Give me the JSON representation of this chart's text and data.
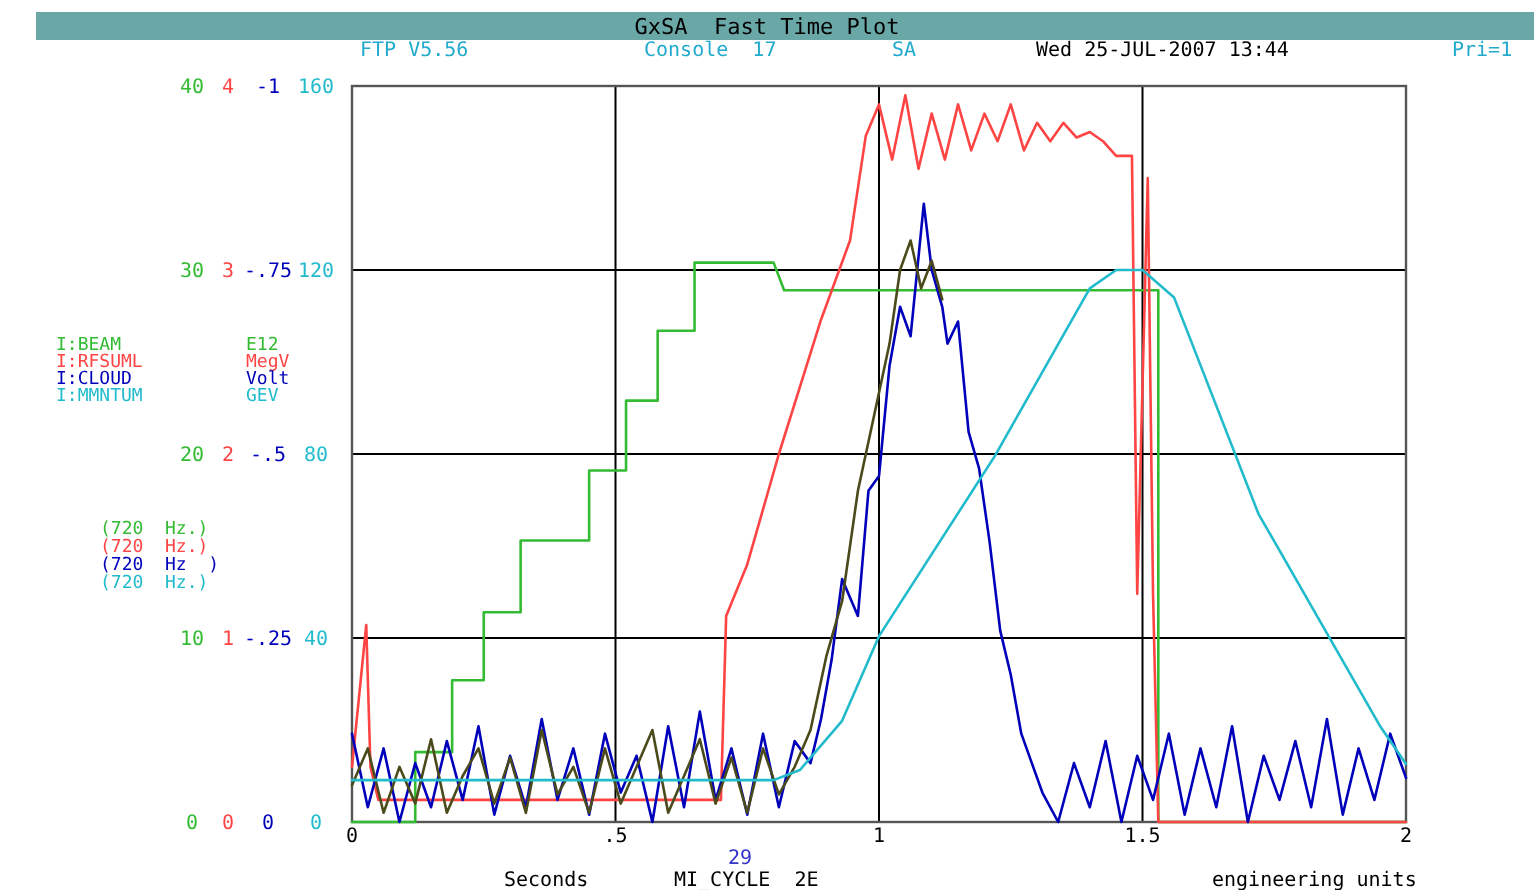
{
  "chart_data": [
    {
      "type": "line",
      "title": "GxSA  Fast Time Plot",
      "xlabel": "Seconds",
      "annotations": [
        "FTP V5.56",
        "Console  17",
        "SA",
        "Wed 25-JUL-2007 13:44",
        "Pri=1",
        "E12",
        "MegV",
        "Volt",
        "(720  Hz.)",
        "(720  Hz.)",
        "(720  Hz  )",
        "29",
        "MI_CYCLE  2E",
        "engineering units"
      ],
      "xlim": [
        0,
        2
      ],
      "xticks": [
        0,
        {
          "value": 0.5,
          "label": ".5"
        },
        1,
        1.5,
        2
      ],
      "ylim": [
        0,
        40
      ],
      "yticks": [
        0,
        10,
        20,
        30,
        40
      ],
      "y2lim": [
        0,
        4
      ],
      "y2ticks": [
        0,
        1,
        2,
        3,
        4
      ],
      "y3lim": [
        0,
        -1
      ],
      "y3ticks": [
        0,
        {
          "value": -0.25,
          "label": "-.25"
        },
        {
          "value": -0.5,
          "label": "-.5"
        },
        {
          "value": -0.75,
          "label": "-.75"
        },
        -1
      ],
      "grid": true,
      "legend": "left",
      "marker": "none",
      "line_style": "solid",
      "series": [
        {
          "name": "I:BEAM",
          "color": "#33bb33",
          "axis": "y",
          "x": [
            0,
            0.12,
            0.12,
            0.19,
            0.19,
            0.25,
            0.25,
            0.32,
            0.32,
            0.45,
            0.45,
            0.52,
            0.52,
            0.58,
            0.58,
            0.65,
            0.65,
            0.8,
            0.82,
            1.53,
            1.53,
            2.0
          ],
          "values": [
            0,
            0,
            3.8,
            3.8,
            7.7,
            7.7,
            11.4,
            11.4,
            15.3,
            15.3,
            19.1,
            19.1,
            22.9,
            22.9,
            26.7,
            26.7,
            30.4,
            30.4,
            28.9,
            28.9,
            0,
            0
          ]
        },
        {
          "name": "I:RFSUML",
          "color": "#ff4444",
          "axis": "y2",
          "x": [
            0,
            0.027,
            0.035,
            0.05,
            0.7,
            0.71,
            0.75,
            0.81,
            0.89,
            0.945,
            0.975,
            1.0,
            1.025,
            1.05,
            1.075,
            1.1,
            1.125,
            1.15,
            1.175,
            1.2,
            1.225,
            1.25,
            1.275,
            1.3,
            1.325,
            1.35,
            1.375,
            1.4,
            1.425,
            1.45,
            1.48,
            1.49,
            1.51,
            1.52,
            1.53,
            2.0
          ],
          "values": [
            0.3,
            1.07,
            0.3,
            0.12,
            0.12,
            1.12,
            1.4,
            2.0,
            2.73,
            3.16,
            3.73,
            3.9,
            3.6,
            3.95,
            3.55,
            3.85,
            3.6,
            3.9,
            3.65,
            3.85,
            3.7,
            3.9,
            3.65,
            3.8,
            3.7,
            3.8,
            3.72,
            3.75,
            3.7,
            3.62,
            3.62,
            1.24,
            3.5,
            1.24,
            0,
            0
          ]
        },
        {
          "name": "I:CLOUD",
          "color": "#0000bb",
          "axis": "y3",
          "x": [
            0,
            0.03,
            0.06,
            0.09,
            0.12,
            0.15,
            0.18,
            0.21,
            0.24,
            0.27,
            0.3,
            0.33,
            0.36,
            0.39,
            0.42,
            0.45,
            0.48,
            0.51,
            0.54,
            0.57,
            0.6,
            0.63,
            0.66,
            0.69,
            0.72,
            0.75,
            0.78,
            0.81,
            0.84,
            0.87,
            0.89,
            0.91,
            0.93,
            0.96,
            0.98,
            1.0,
            1.02,
            1.04,
            1.06,
            1.085,
            1.1,
            1.12,
            1.13,
            1.15,
            1.17,
            1.19,
            1.21,
            1.23,
            1.25,
            1.27,
            1.29,
            1.31,
            1.34,
            1.37,
            1.4,
            1.43,
            1.46,
            1.49,
            1.52,
            1.55,
            1.58,
            1.61,
            1.64,
            1.67,
            1.7,
            1.73,
            1.76,
            1.79,
            1.82,
            1.85,
            1.88,
            1.91,
            1.94,
            1.97,
            2.0
          ],
          "values": [
            -0.12,
            -0.02,
            -0.1,
            0,
            -0.08,
            -0.02,
            -0.11,
            -0.03,
            -0.13,
            -0.01,
            -0.09,
            -0.02,
            -0.14,
            -0.03,
            -0.1,
            -0.01,
            -0.12,
            -0.04,
            -0.09,
            0,
            -0.13,
            -0.02,
            -0.15,
            -0.03,
            -0.1,
            -0.01,
            -0.12,
            -0.02,
            -0.11,
            -0.08,
            -0.14,
            -0.22,
            -0.33,
            -0.28,
            -0.45,
            -0.47,
            -0.62,
            -0.7,
            -0.66,
            -0.84,
            -0.75,
            -0.7,
            -0.65,
            -0.68,
            -0.53,
            -0.48,
            -0.38,
            -0.26,
            -0.2,
            -0.12,
            -0.08,
            -0.04,
            0,
            -0.08,
            -0.02,
            -0.11,
            0,
            -0.09,
            -0.03,
            -0.12,
            -0.01,
            -0.1,
            -0.02,
            -0.13,
            0,
            -0.09,
            -0.03,
            -0.11,
            -0.02,
            -0.14,
            -0.01,
            -0.1,
            -0.03,
            -0.12,
            -0.06
          ]
        },
        {
          "color": "#4a4a1a",
          "axis": "y",
          "x": [
            0,
            0.03,
            0.06,
            0.09,
            0.12,
            0.15,
            0.18,
            0.21,
            0.24,
            0.27,
            0.3,
            0.33,
            0.36,
            0.39,
            0.42,
            0.45,
            0.48,
            0.51,
            0.54,
            0.57,
            0.6,
            0.63,
            0.66,
            0.69,
            0.72,
            0.75,
            0.78,
            0.81,
            0.84,
            0.87,
            0.9,
            0.93,
            0.96,
            0.99,
            1.02,
            1.04,
            1.06,
            1.08,
            1.1,
            1.12
          ],
          "values": [
            2,
            4,
            0.5,
            3,
            1,
            4.5,
            0.5,
            2.5,
            4,
            1,
            3.5,
            0.5,
            5,
            1.5,
            3,
            0.5,
            4,
            1,
            3,
            5,
            0.5,
            2.5,
            4.5,
            1,
            3.5,
            0.5,
            4,
            1.5,
            3,
            5,
            9,
            12,
            18,
            22,
            26,
            30,
            31.6,
            29,
            30.5,
            28.4
          ]
        }
      ]
    },
    {
      "type": "line",
      "annotations": [
        "GEV",
        "(720  Hz.)"
      ],
      "xlim": [
        0,
        2
      ],
      "ylim": [
        0,
        160
      ],
      "yticks": [
        0,
        40,
        80,
        120,
        160
      ],
      "tick_labels": "y",
      "legend": "left",
      "line_style": "solid",
      "series": [
        {
          "name": "I:MMNTUM",
          "color": "#22bbcc",
          "x": [
            0,
            0.8,
            0.85,
            0.93,
            1.0,
            1.22,
            1.4,
            1.45,
            1.5,
            1.56,
            1.72,
            1.95,
            2.0
          ],
          "values": [
            9.1,
            9.1,
            11.3,
            22,
            40.4,
            79.6,
            116,
            120,
            120,
            114,
            67,
            21,
            12.6
          ]
        }
      ]
    }
  ]
}
